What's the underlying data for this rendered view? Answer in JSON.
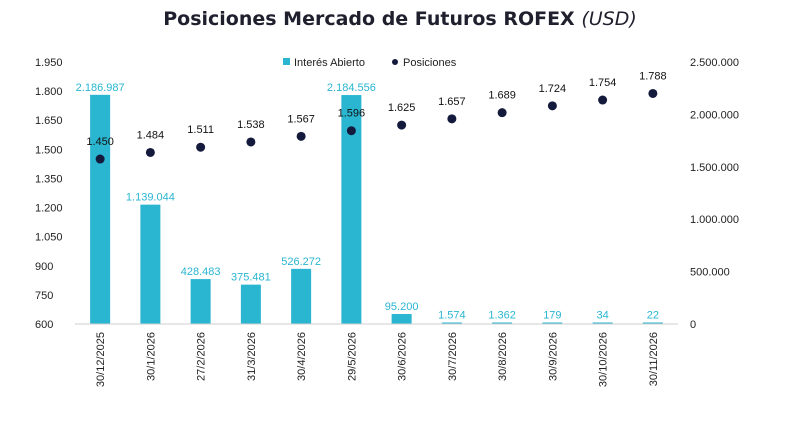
{
  "chart_data": {
    "type": "bar+scatter",
    "title": "Posiciones Mercado de Futuros ROFEX",
    "title_unit": "(USD)",
    "categories": [
      "30/12/2025",
      "30/1/2026",
      "27/2/2026",
      "31/3/2026",
      "30/4/2026",
      "29/5/2026",
      "30/6/2026",
      "30/7/2026",
      "30/8/2026",
      "30/9/2026",
      "30/10/2026",
      "30/11/2026"
    ],
    "series": [
      {
        "name": "Interés Abierto",
        "type": "bar",
        "axis": "right",
        "color": "#2ab5d1",
        "values": [
          2186987,
          1139044,
          428483,
          375481,
          526272,
          2184556,
          95200,
          1574,
          1362,
          179,
          34,
          22
        ],
        "labels": [
          "2.186.987",
          "1.139.044",
          "428.483",
          "375.481",
          "526.272",
          "2.184.556",
          "95.200",
          "1.574",
          "1.362",
          "179",
          "34",
          "22"
        ]
      },
      {
        "name": "Posiciones",
        "type": "scatter",
        "axis": "left",
        "color": "#141a3c",
        "values": [
          1450,
          1484,
          1511,
          1538,
          1567,
          1596,
          1625,
          1657,
          1689,
          1724,
          1754,
          1788
        ],
        "labels": [
          "1.450",
          "1.484",
          "1.511",
          "1.538",
          "1.567",
          "1.596",
          "1.625",
          "1.657",
          "1.689",
          "1.724",
          "1.754",
          "1.788"
        ]
      }
    ],
    "y_left": {
      "min": 600,
      "max": 1950,
      "ticks": [
        600,
        750,
        900,
        1050,
        1200,
        1350,
        1500,
        1650,
        1800,
        1950
      ],
      "tick_labels": [
        "600",
        "750",
        "900",
        "1.050",
        "1.200",
        "1.350",
        "1.500",
        "1.650",
        "1.800",
        "1.950"
      ]
    },
    "y_right": {
      "min": 0,
      "max": 2500000,
      "ticks": [
        0,
        500000,
        1000000,
        1500000,
        2000000,
        2500000
      ],
      "tick_labels": [
        "0",
        "500.000",
        "1.000.000",
        "1.500.000",
        "2.000.000",
        "2.500.000"
      ]
    },
    "legend": {
      "position": "top-center"
    },
    "grid": false
  }
}
